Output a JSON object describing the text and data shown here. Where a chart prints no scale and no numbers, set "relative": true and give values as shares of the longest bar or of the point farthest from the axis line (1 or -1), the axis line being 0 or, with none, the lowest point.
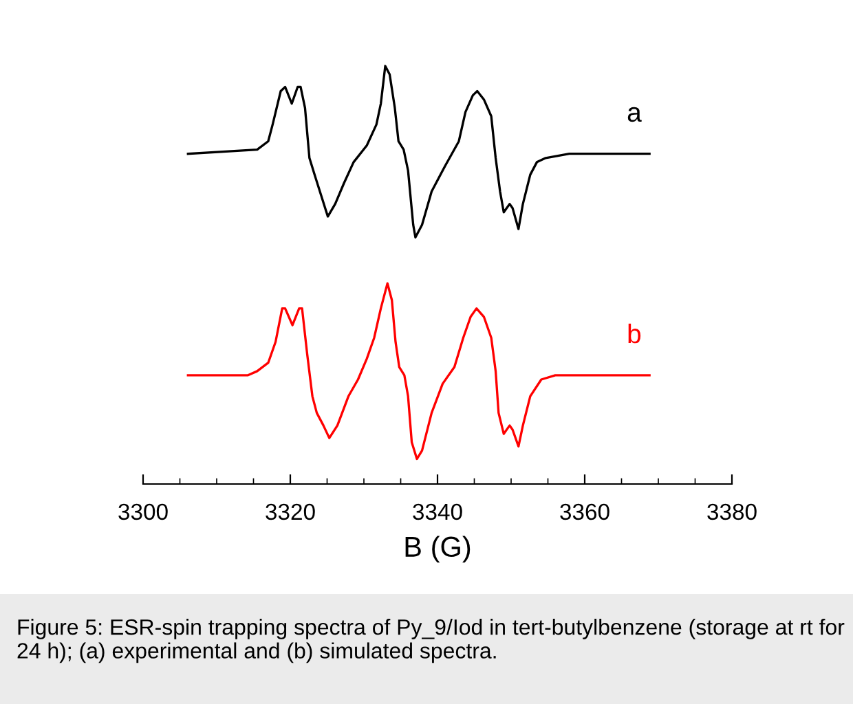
{
  "chart_data": {
    "type": "line",
    "relative": true,
    "xlabel": "B (G)",
    "xlim": [
      3300,
      3380
    ],
    "xticks": [
      3300,
      3320,
      3340,
      3360,
      3380
    ],
    "grid": false,
    "legend": false,
    "marker": "none",
    "line_style": "solid",
    "series": [
      {
        "name": "a",
        "color": "#000000",
        "x": [
          3306.1,
          3315.5,
          3317.0,
          3317.6,
          3318.7,
          3319.3,
          3320.2,
          3321.0,
          3321.4,
          3322.0,
          3322.6,
          3323.3,
          3324.2,
          3325.1,
          3326.1,
          3327.3,
          3328.6,
          3330.4,
          3331.7,
          3332.3,
          3332.9,
          3333.5,
          3334.2,
          3334.7,
          3335.4,
          3336.0,
          3336.7,
          3337.0,
          3337.9,
          3339.2,
          3341.0,
          3342.9,
          3343.8,
          3344.8,
          3345.4,
          3346.3,
          3347.3,
          3347.9,
          3348.5,
          3349.0,
          3349.8,
          3350.2,
          3351.0,
          3351.6,
          3352.6,
          3353.5,
          3354.7,
          3357.9,
          3368.8
        ],
        "values": [
          0.79,
          0.8,
          0.82,
          0.86,
          0.94,
          0.95,
          0.91,
          0.95,
          0.95,
          0.9,
          0.78,
          0.74,
          0.69,
          0.64,
          0.67,
          0.72,
          0.77,
          0.81,
          0.86,
          0.91,
          1.0,
          0.98,
          0.9,
          0.82,
          0.8,
          0.75,
          0.62,
          0.59,
          0.62,
          0.7,
          0.76,
          0.82,
          0.89,
          0.93,
          0.94,
          0.92,
          0.88,
          0.78,
          0.7,
          0.65,
          0.67,
          0.66,
          0.61,
          0.67,
          0.74,
          0.77,
          0.78,
          0.79,
          0.79
        ]
      },
      {
        "name": "b",
        "color": "#ff0000",
        "x": [
          3306.1,
          3314.2,
          3315.5,
          3317.0,
          3318.0,
          3318.9,
          3319.3,
          3320.3,
          3321.2,
          3321.6,
          3322.3,
          3323.0,
          3323.6,
          3324.5,
          3325.3,
          3326.4,
          3327.9,
          3329.2,
          3330.4,
          3331.4,
          3332.3,
          3333.2,
          3333.8,
          3334.3,
          3334.8,
          3335.5,
          3336.0,
          3336.5,
          3337.2,
          3337.9,
          3339.2,
          3340.7,
          3342.3,
          3343.5,
          3344.5,
          3345.3,
          3346.3,
          3347.3,
          3347.9,
          3348.3,
          3349.0,
          3349.8,
          3350.2,
          3351.0,
          3351.6,
          3352.6,
          3354.1,
          3356.0,
          3368.8
        ],
        "values": [
          0.26,
          0.26,
          0.27,
          0.29,
          0.34,
          0.42,
          0.42,
          0.38,
          0.42,
          0.42,
          0.31,
          0.21,
          0.17,
          0.14,
          0.11,
          0.14,
          0.21,
          0.25,
          0.3,
          0.35,
          0.42,
          0.48,
          0.44,
          0.34,
          0.28,
          0.26,
          0.21,
          0.1,
          0.06,
          0.08,
          0.17,
          0.24,
          0.28,
          0.35,
          0.4,
          0.42,
          0.4,
          0.35,
          0.27,
          0.17,
          0.12,
          0.14,
          0.13,
          0.09,
          0.14,
          0.21,
          0.25,
          0.26,
          0.26
        ]
      }
    ],
    "annotations": [
      "Figure 5: ESR-spin trapping spectra of Py_9/Iod in tert-butylbenzene (storage at rt for 24 h); (a) experimental and (b) simulated spectra."
    ]
  }
}
